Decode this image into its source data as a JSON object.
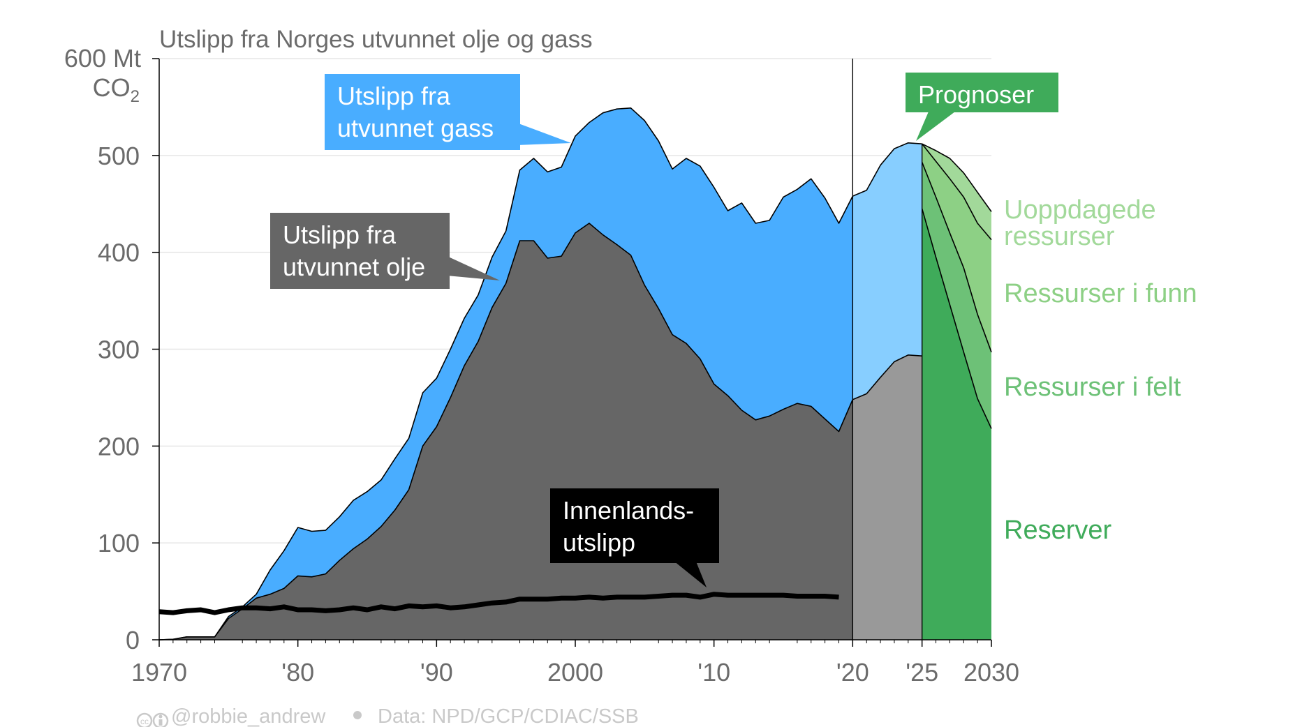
{
  "chart_data": {
    "type": "area",
    "title": "Utslipp fra Norges utvunnet olje og gass",
    "y_unit": "Mt",
    "y_unit_sub_main": "CO",
    "y_unit_sub_index": "2",
    "ylim": [
      0,
      600
    ],
    "xlim": [
      1970,
      2030
    ],
    "y_ticks": [
      {
        "value": 0,
        "label": "0"
      },
      {
        "value": 100,
        "label": "100"
      },
      {
        "value": 200,
        "label": "200"
      },
      {
        "value": 300,
        "label": "300"
      },
      {
        "value": 400,
        "label": "400"
      },
      {
        "value": 500,
        "label": "500"
      },
      {
        "value": 600,
        "label": "600"
      }
    ],
    "x_ticks": [
      {
        "value": 1970,
        "label": "1970"
      },
      {
        "value": 1980,
        "label": "'80"
      },
      {
        "value": 1990,
        "label": "'90"
      },
      {
        "value": 2000,
        "label": "2000"
      },
      {
        "value": 2010,
        "label": "'10"
      },
      {
        "value": 2020,
        "label": "'20"
      },
      {
        "value": 2025,
        "label": "'25"
      },
      {
        "value": 2030,
        "label": "2030"
      }
    ],
    "grid": true,
    "years": [
      1970,
      1971,
      1972,
      1973,
      1974,
      1975,
      1976,
      1977,
      1978,
      1979,
      1980,
      1981,
      1982,
      1983,
      1984,
      1985,
      1986,
      1987,
      1988,
      1989,
      1990,
      1991,
      1992,
      1993,
      1994,
      1995,
      1996,
      1997,
      1998,
      1999,
      2000,
      2001,
      2002,
      2003,
      2004,
      2005,
      2006,
      2007,
      2008,
      2009,
      2010,
      2011,
      2012,
      2013,
      2014,
      2015,
      2016,
      2017,
      2018,
      2019,
      2020
    ],
    "series": [
      {
        "key": "oil",
        "values": [
          0,
          0.5,
          3,
          3,
          3,
          22,
          32,
          43,
          47,
          53,
          66,
          65,
          68,
          82,
          94,
          104,
          117,
          134,
          155,
          200,
          220,
          250,
          283,
          308,
          343,
          368,
          412,
          412,
          394,
          396,
          420,
          430,
          418,
          408,
          397,
          366,
          342,
          315,
          306,
          290,
          264,
          252,
          237,
          227,
          231,
          238,
          244,
          241,
          228,
          215,
          248
        ]
      },
      {
        "key": "gas",
        "values": [
          0,
          0.5,
          3,
          3,
          3,
          24,
          34,
          47,
          72,
          92,
          116,
          112,
          113,
          127,
          144,
          153,
          165,
          187,
          208,
          255,
          270,
          300,
          332,
          356,
          395,
          422,
          485,
          497,
          483,
          488,
          520,
          534,
          544,
          548,
          549,
          536,
          515,
          486,
          497,
          489,
          467,
          443,
          451,
          430,
          433,
          457,
          465,
          476,
          456,
          430,
          458
        ]
      }
    ],
    "domestic": {
      "years": [
        1970,
        1971,
        1972,
        1973,
        1974,
        1975,
        1976,
        1977,
        1978,
        1979,
        1980,
        1981,
        1982,
        1983,
        1984,
        1985,
        1986,
        1987,
        1988,
        1989,
        1990,
        1991,
        1992,
        1993,
        1994,
        1995,
        1996,
        1997,
        1998,
        1999,
        2000,
        2001,
        2002,
        2003,
        2004,
        2005,
        2006,
        2007,
        2008,
        2009,
        2010,
        2011,
        2012,
        2013,
        2014,
        2015,
        2016,
        2017,
        2018,
        2019
      ],
      "values": [
        29,
        28,
        30,
        31,
        28,
        31,
        33,
        33,
        32,
        34,
        31,
        31,
        30,
        31,
        33,
        31,
        34,
        32,
        35,
        34,
        35,
        33,
        34,
        36,
        38,
        39,
        42,
        42,
        42,
        43,
        43,
        44,
        43,
        44,
        44,
        44,
        45,
        46,
        46,
        44,
        47,
        46,
        46,
        46,
        46,
        46,
        45,
        45,
        45,
        44
      ]
    },
    "projection_2020_2025": {
      "years": [
        2020,
        2021,
        2022,
        2023,
        2024,
        2025
      ],
      "oil": [
        248,
        254,
        271,
        287,
        294,
        293
      ],
      "gas": [
        458,
        464,
        490,
        507,
        513,
        512
      ]
    },
    "forecast_2025_2030": {
      "years": [
        2025,
        2026,
        2027,
        2028,
        2029,
        2030
      ],
      "reserver": [
        445,
        395,
        346,
        297,
        249,
        218
      ],
      "ressurser_i_felt": [
        493,
        457,
        420,
        384,
        336,
        297
      ],
      "ressurser_i_funn": [
        512,
        494,
        476,
        457,
        430,
        413
      ],
      "uoppdagede_ressurser": [
        512,
        505,
        497,
        482,
        462,
        442
      ]
    },
    "annotations": {
      "gas_label": [
        "Utslipp fra",
        "utvunnet gass"
      ],
      "oil_label": [
        "Utslipp fra",
        "utvunnet olje"
      ],
      "domestic_label": [
        "Innenlands-",
        "utslipp"
      ],
      "prognoser_label": "Prognoser",
      "uoppdagede_label": [
        "Uoppdagede",
        "ressurser"
      ],
      "funn_label": "Ressurser i funn",
      "felt_label": "Ressurser i felt",
      "reserver_label": "Reserver"
    },
    "source_line": {
      "cc_icon": "creative-commons-icon",
      "handle": "@robbie_andrew",
      "data": "Data: NPD/GCP/CDIAC/SSB"
    },
    "colors": {
      "oil": "#666666",
      "gas": "#49adff",
      "oil_proj": "#999999",
      "gas_proj": "#87ceff",
      "reserver": "#3fab5a",
      "felt": "#6dc177",
      "funn": "#8dd085",
      "uoppdagede": "#a2d99a",
      "domestic": "#000000",
      "axis_text": "#6b6b6b",
      "grid": "#e6e6e6"
    }
  }
}
